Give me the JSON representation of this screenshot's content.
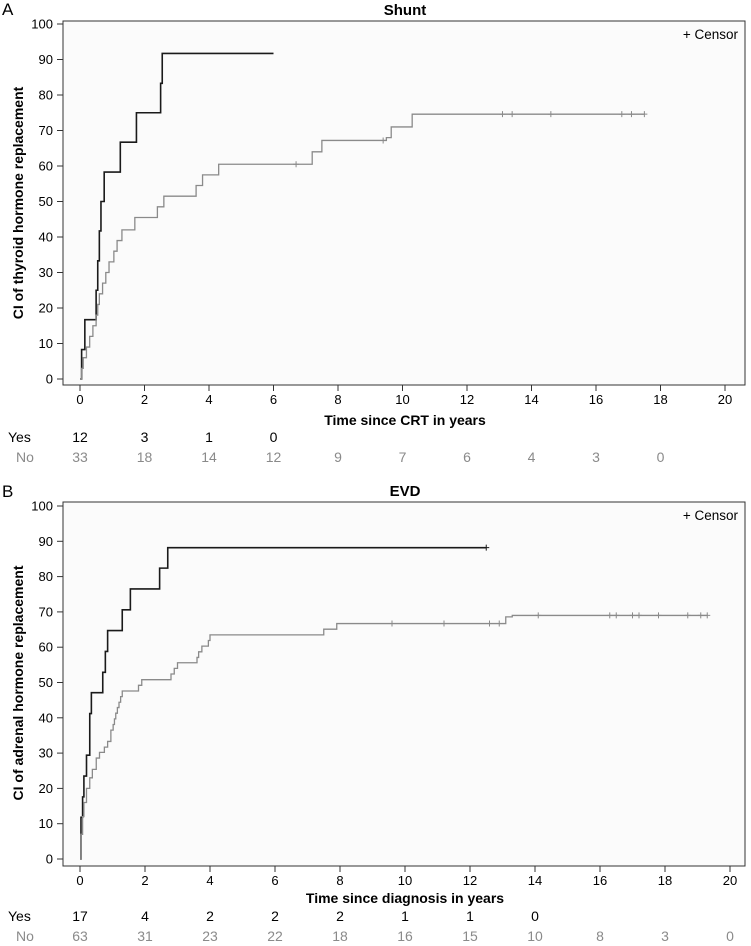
{
  "chart_data": [
    {
      "type": "line",
      "panel": "A",
      "title": "Shunt",
      "xlabel": "Time since CRT in years",
      "ylabel": "CI of thyroid hormone replacement",
      "xlim": [
        0,
        20
      ],
      "ylim": [
        0,
        100
      ],
      "xticks": [
        0,
        2,
        4,
        6,
        8,
        10,
        12,
        14,
        16,
        18,
        20
      ],
      "yticks": [
        0,
        10,
        20,
        30,
        40,
        50,
        60,
        70,
        80,
        90,
        100
      ],
      "legend": "+ Censor",
      "series": [
        {
          "name": "Yes",
          "color": "#1a1a1a",
          "steps": [
            [
              0,
              0
            ],
            [
              0.05,
              8.3
            ],
            [
              0.15,
              16.7
            ],
            [
              0.5,
              25
            ],
            [
              0.55,
              33.3
            ],
            [
              0.6,
              41.7
            ],
            [
              0.65,
              50
            ],
            [
              0.75,
              58.3
            ],
            [
              1.25,
              66.7
            ],
            [
              1.75,
              75
            ],
            [
              2.5,
              83.3
            ],
            [
              2.55,
              91.7
            ],
            [
              6.0,
              91.7
            ]
          ],
          "censors": []
        },
        {
          "name": "No",
          "color": "#8a8a8a",
          "steps": [
            [
              0,
              0
            ],
            [
              0.05,
              3
            ],
            [
              0.1,
              6
            ],
            [
              0.2,
              9
            ],
            [
              0.3,
              12
            ],
            [
              0.4,
              15
            ],
            [
              0.5,
              18
            ],
            [
              0.55,
              21
            ],
            [
              0.6,
              24
            ],
            [
              0.7,
              27
            ],
            [
              0.8,
              30
            ],
            [
              0.9,
              33
            ],
            [
              1.05,
              36
            ],
            [
              1.15,
              39
            ],
            [
              1.3,
              42
            ],
            [
              1.7,
              45.5
            ],
            [
              2.4,
              48.5
            ],
            [
              2.6,
              51.5
            ],
            [
              3.6,
              54.5
            ],
            [
              3.8,
              57.5
            ],
            [
              4.3,
              60.5
            ],
            [
              7.2,
              64
            ],
            [
              7.5,
              67.2
            ],
            [
              9.5,
              68
            ],
            [
              9.65,
              71
            ],
            [
              10.3,
              74.6
            ],
            [
              17.5,
              74.6
            ]
          ],
          "censors": [
            [
              6.7,
              60.5
            ],
            [
              9.4,
              67.2
            ],
            [
              13.1,
              74.6
            ],
            [
              13.4,
              74.6
            ],
            [
              14.6,
              74.6
            ],
            [
              16.8,
              74.6
            ],
            [
              17.1,
              74.6
            ],
            [
              17.5,
              74.6
            ]
          ]
        }
      ],
      "risk_table": {
        "times": [
          0,
          2,
          4,
          6,
          8,
          10,
          12,
          14,
          16,
          18
        ],
        "rows": [
          {
            "label": "Yes",
            "values": [
              "12",
              "3",
              "1",
              "0"
            ]
          },
          {
            "label": "No",
            "values": [
              "33",
              "18",
              "14",
              "12",
              "9",
              "7",
              "6",
              "4",
              "3",
              "0"
            ]
          }
        ]
      }
    },
    {
      "type": "line",
      "panel": "B",
      "title": "EVD",
      "xlabel": "Time since diagnosis in years",
      "ylabel": "CI of adrenal hormone replacement",
      "xlim": [
        0,
        20
      ],
      "ylim": [
        0,
        100
      ],
      "xticks": [
        0,
        2,
        4,
        6,
        8,
        10,
        12,
        14,
        16,
        18,
        20
      ],
      "yticks": [
        0,
        10,
        20,
        30,
        40,
        50,
        60,
        70,
        80,
        90,
        100
      ],
      "legend": "+ Censor",
      "series": [
        {
          "name": "Yes",
          "color": "#1a1a1a",
          "steps": [
            [
              0,
              0
            ],
            [
              0.03,
              11.8
            ],
            [
              0.08,
              17.6
            ],
            [
              0.12,
              23.5
            ],
            [
              0.2,
              29.4
            ],
            [
              0.3,
              41.2
            ],
            [
              0.35,
              47.1
            ],
            [
              0.7,
              52.9
            ],
            [
              0.78,
              58.8
            ],
            [
              0.85,
              64.7
            ],
            [
              1.3,
              70.6
            ],
            [
              1.55,
              76.5
            ],
            [
              2.45,
              82.4
            ],
            [
              2.7,
              88.2
            ],
            [
              12.5,
              88.2
            ]
          ],
          "censors": [
            [
              12.5,
              88.2
            ]
          ]
        },
        {
          "name": "No",
          "color": "#8a8a8a",
          "steps": [
            [
              0,
              0
            ],
            [
              0.03,
              7
            ],
            [
              0.08,
              12
            ],
            [
              0.12,
              16
            ],
            [
              0.2,
              20
            ],
            [
              0.3,
              23
            ],
            [
              0.38,
              25.4
            ],
            [
              0.5,
              28.6
            ],
            [
              0.6,
              30.2
            ],
            [
              0.75,
              31.7
            ],
            [
              0.85,
              33.3
            ],
            [
              0.95,
              36.5
            ],
            [
              1.02,
              38.1
            ],
            [
              1.06,
              39.7
            ],
            [
              1.1,
              41.3
            ],
            [
              1.15,
              42.9
            ],
            [
              1.2,
              44.4
            ],
            [
              1.25,
              46
            ],
            [
              1.3,
              47.6
            ],
            [
              1.8,
              49.2
            ],
            [
              1.9,
              50.8
            ],
            [
              2.8,
              52.4
            ],
            [
              2.9,
              54
            ],
            [
              3.0,
              55.6
            ],
            [
              3.6,
              57.1
            ],
            [
              3.65,
              58.7
            ],
            [
              3.75,
              60.3
            ],
            [
              3.95,
              61.9
            ],
            [
              4.0,
              63.5
            ],
            [
              7.5,
              65.1
            ],
            [
              7.9,
              66.7
            ],
            [
              13.0,
              66.7
            ],
            [
              13.1,
              68.6
            ],
            [
              13.3,
              69.0
            ],
            [
              19.3,
              69.0
            ]
          ],
          "censors": [
            [
              9.6,
              66.7
            ],
            [
              11.2,
              66.7
            ],
            [
              12.6,
              66.7
            ],
            [
              12.9,
              66.7
            ],
            [
              14.1,
              69.0
            ],
            [
              16.3,
              69.0
            ],
            [
              16.5,
              69.0
            ],
            [
              17.0,
              69.0
            ],
            [
              17.2,
              69.0
            ],
            [
              17.8,
              69.0
            ],
            [
              18.7,
              69.0
            ],
            [
              19.1,
              69.0
            ],
            [
              19.3,
              69.0
            ]
          ]
        }
      ],
      "risk_table": {
        "times": [
          0,
          2,
          4,
          6,
          8,
          10,
          12,
          14,
          16,
          18,
          20
        ],
        "rows": [
          {
            "label": "Yes",
            "values": [
              "17",
              "4",
              "2",
              "2",
              "2",
              "1",
              "1",
              "0"
            ]
          },
          {
            "label": "No",
            "values": [
              "63",
              "31",
              "23",
              "22",
              "18",
              "16",
              "15",
              "10",
              "8",
              "3",
              "0"
            ]
          }
        ]
      }
    }
  ]
}
